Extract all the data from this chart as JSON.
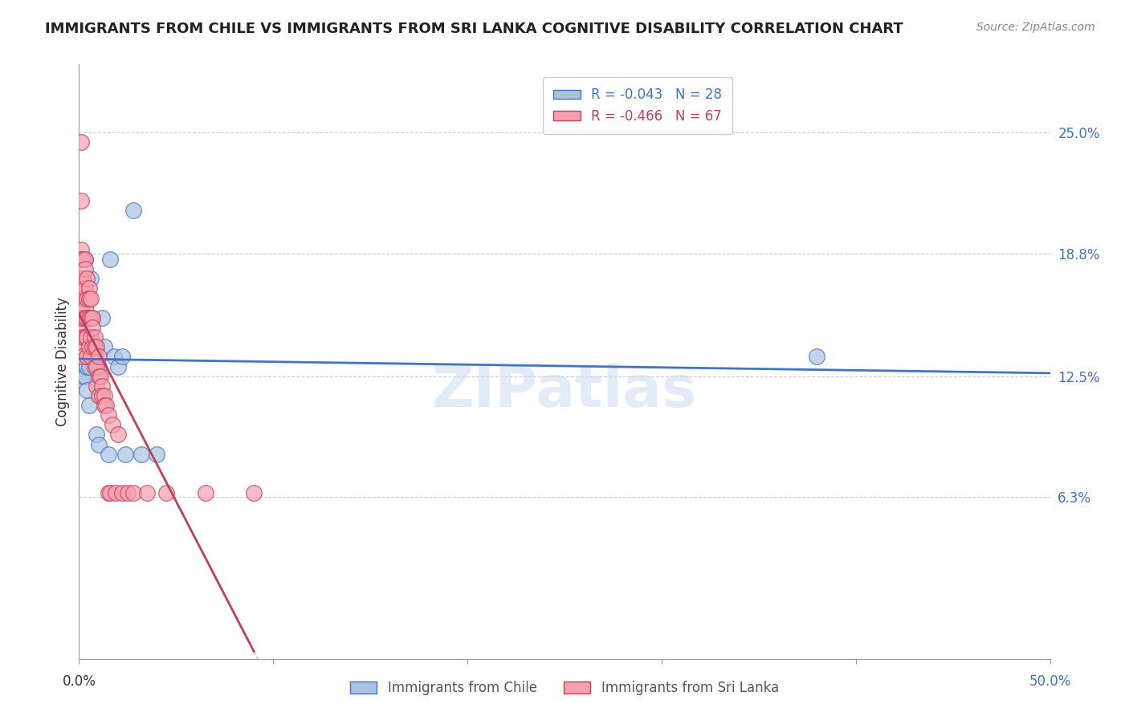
{
  "title": "IMMIGRANTS FROM CHILE VS IMMIGRANTS FROM SRI LANKA COGNITIVE DISABILITY CORRELATION CHART",
  "source": "Source: ZipAtlas.com",
  "ylabel": "Cognitive Disability",
  "ytick_values": [
    0.25,
    0.188,
    0.125,
    0.063
  ],
  "xmin": 0.0,
  "xmax": 0.5,
  "ymin": -0.02,
  "ymax": 0.285,
  "R_chile": -0.043,
  "N_chile": 28,
  "R_srilanka": -0.466,
  "N_srilanka": 67,
  "color_chile": "#a8c4e0",
  "color_srilanka": "#f4a0b0",
  "line_color_chile": "#4472c4",
  "line_color_srilanka": "#c0405a",
  "watermark": "ZIPatlas",
  "chile_x": [
    0.001,
    0.001,
    0.002,
    0.002,
    0.003,
    0.003,
    0.004,
    0.004,
    0.005,
    0.005,
    0.006,
    0.007,
    0.008,
    0.009,
    0.01,
    0.01,
    0.012,
    0.013,
    0.015,
    0.016,
    0.018,
    0.02,
    0.022,
    0.024,
    0.028,
    0.032,
    0.04,
    0.38
  ],
  "chile_y": [
    0.175,
    0.155,
    0.14,
    0.125,
    0.185,
    0.125,
    0.13,
    0.118,
    0.11,
    0.13,
    0.175,
    0.155,
    0.135,
    0.095,
    0.09,
    0.13,
    0.155,
    0.14,
    0.085,
    0.185,
    0.135,
    0.13,
    0.135,
    0.085,
    0.21,
    0.085,
    0.085,
    0.135
  ],
  "srilanka_x": [
    0.001,
    0.001,
    0.001,
    0.001,
    0.001,
    0.001,
    0.001,
    0.001,
    0.001,
    0.001,
    0.001,
    0.002,
    0.002,
    0.002,
    0.002,
    0.002,
    0.002,
    0.003,
    0.003,
    0.003,
    0.003,
    0.003,
    0.003,
    0.004,
    0.004,
    0.004,
    0.004,
    0.004,
    0.005,
    0.005,
    0.005,
    0.005,
    0.006,
    0.006,
    0.006,
    0.006,
    0.007,
    0.007,
    0.007,
    0.008,
    0.008,
    0.008,
    0.009,
    0.009,
    0.009,
    0.01,
    0.01,
    0.01,
    0.011,
    0.012,
    0.012,
    0.013,
    0.013,
    0.014,
    0.015,
    0.015,
    0.016,
    0.017,
    0.019,
    0.02,
    0.022,
    0.025,
    0.028,
    0.035,
    0.045,
    0.065,
    0.09
  ],
  "srilanka_y": [
    0.245,
    0.215,
    0.19,
    0.185,
    0.175,
    0.17,
    0.165,
    0.16,
    0.155,
    0.15,
    0.14,
    0.185,
    0.175,
    0.165,
    0.155,
    0.145,
    0.135,
    0.185,
    0.18,
    0.17,
    0.16,
    0.155,
    0.145,
    0.175,
    0.165,
    0.155,
    0.145,
    0.135,
    0.17,
    0.165,
    0.155,
    0.14,
    0.165,
    0.155,
    0.145,
    0.135,
    0.155,
    0.15,
    0.14,
    0.145,
    0.14,
    0.13,
    0.14,
    0.13,
    0.12,
    0.135,
    0.125,
    0.115,
    0.125,
    0.12,
    0.115,
    0.115,
    0.11,
    0.11,
    0.105,
    0.065,
    0.065,
    0.1,
    0.065,
    0.095,
    0.065,
    0.065,
    0.065,
    0.065,
    0.065,
    0.065,
    0.065
  ]
}
